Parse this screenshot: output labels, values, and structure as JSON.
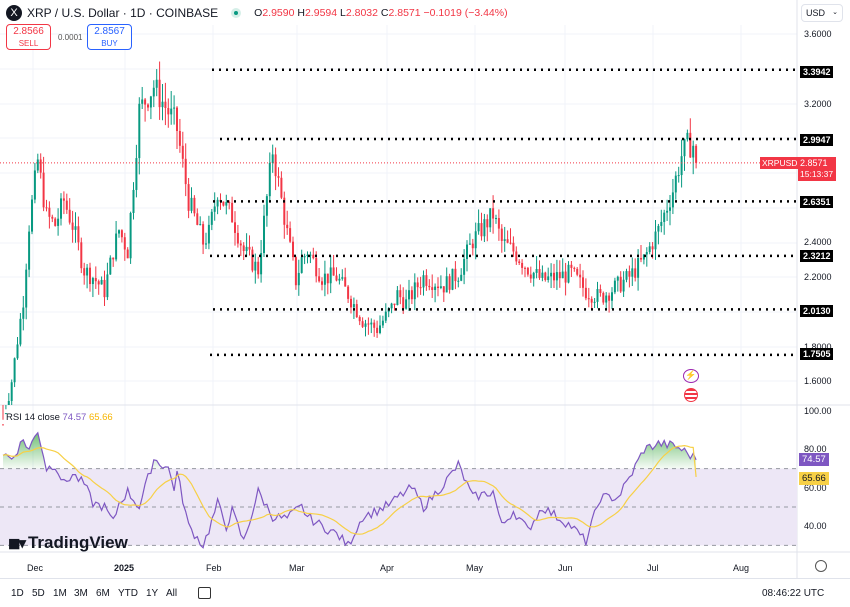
{
  "header": {
    "symbol": "XRP / U.S. Dollar · 1D · COINBASE",
    "logo": "X",
    "ohlc": {
      "o_label": "O",
      "o": "2.9590",
      "h_label": "H",
      "h": "2.9594",
      "l_label": "L",
      "l": "2.8032",
      "c_label": "C",
      "c": "2.8571",
      "change": "−0.1019 (−3.44%)"
    }
  },
  "trade": {
    "sell_price": "2.8566",
    "sell_label": "SELL",
    "spread": "0.0001",
    "buy_price": "2.8567",
    "buy_label": "BUY"
  },
  "currency": "USD",
  "price_axis": [
    "3.6000",
    "3.2000",
    "2.4000",
    "2.2000",
    "1.8000",
    "1.6000"
  ],
  "levels": [
    "3.3942",
    "2.9947",
    "2.6351",
    "2.3212",
    "2.0130",
    "1.7505"
  ],
  "current": {
    "symbol": "XRPUSD",
    "price": "2.8571",
    "countdown": "15:13:37"
  },
  "rsi": {
    "label": "RSI 14 close",
    "value": "74.57",
    "ma_value": "65.66",
    "axis": [
      "100.00",
      "80.00",
      "60.00",
      "40.00"
    ]
  },
  "time_axis": [
    "Dec",
    "2025",
    "Feb",
    "Mar",
    "Apr",
    "May",
    "Jun",
    "Jul",
    "Aug"
  ],
  "ranges": [
    "1D",
    "5D",
    "1M",
    "3M",
    "6M",
    "YTD",
    "1Y",
    "All"
  ],
  "clock": "08:46:22 UTC",
  "brand": "TradingView",
  "colors": {
    "up": "#089981",
    "down": "#f23645",
    "rsi": "#7e57c2",
    "rsi_ma": "#f7d046",
    "band": "#ede7f6"
  },
  "chart_data": {
    "type": "candlestick",
    "title": "XRP / U.S. Dollar · 1D · COINBASE",
    "x_start": "2024-11-19",
    "x_unit": "days",
    "ylim": [
      1.46,
      3.78
    ],
    "anchor_days": [
      0,
      3,
      7,
      9,
      12,
      15,
      18,
      21,
      24,
      28,
      31,
      35,
      38,
      40,
      43,
      47,
      52,
      57,
      59,
      60,
      64,
      69,
      71,
      74,
      77,
      79,
      83,
      88,
      93,
      98,
      101,
      103,
      105,
      110,
      115,
      119,
      124,
      129,
      134,
      136,
      139,
      141,
      145,
      152,
      157,
      162,
      169,
      172,
      176,
      181,
      186,
      191,
      196,
      201,
      206,
      212,
      216,
      221,
      226,
      231,
      234,
      236,
      238,
      239
    ],
    "closes": [
      1.35,
      1.6,
      2.07,
      2.5,
      2.87,
      2.55,
      2.5,
      2.64,
      2.5,
      2.24,
      2.2,
      2.12,
      2.35,
      2.47,
      2.35,
      3.16,
      3.3,
      3.15,
      3.1,
      3.05,
      2.64,
      2.4,
      2.45,
      2.7,
      2.6,
      2.55,
      2.35,
      2.24,
      2.93,
      2.45,
      2.18,
      2.3,
      2.35,
      2.2,
      2.2,
      2.1,
      1.95,
      1.9,
      2.02,
      2.1,
      2.05,
      2.1,
      2.2,
      2.15,
      2.22,
      2.41,
      2.56,
      2.4,
      2.35,
      2.25,
      2.18,
      2.2,
      2.22,
      2.12,
      2.08,
      2.15,
      2.2,
      2.3,
      2.47,
      2.7,
      2.9,
      2.96,
      2.96,
      2.8571
    ],
    "rsi_values": [
      78,
      75,
      85,
      80,
      90,
      70,
      72,
      62,
      67,
      62,
      52,
      50,
      42,
      52,
      58,
      50,
      75,
      70,
      60,
      68,
      40,
      30,
      38,
      52,
      40,
      48,
      32,
      58,
      45,
      44,
      48,
      50,
      45,
      40,
      36,
      30,
      45,
      48,
      52,
      55,
      58,
      60,
      50,
      62,
      72,
      55,
      58,
      40,
      48,
      38,
      50,
      45,
      40,
      32,
      55,
      55,
      65,
      80,
      83,
      82,
      80,
      78,
      76,
      74.57
    ],
    "rsi_ylim": [
      20,
      100
    ],
    "rsi_bands": [
      70,
      30
    ]
  }
}
